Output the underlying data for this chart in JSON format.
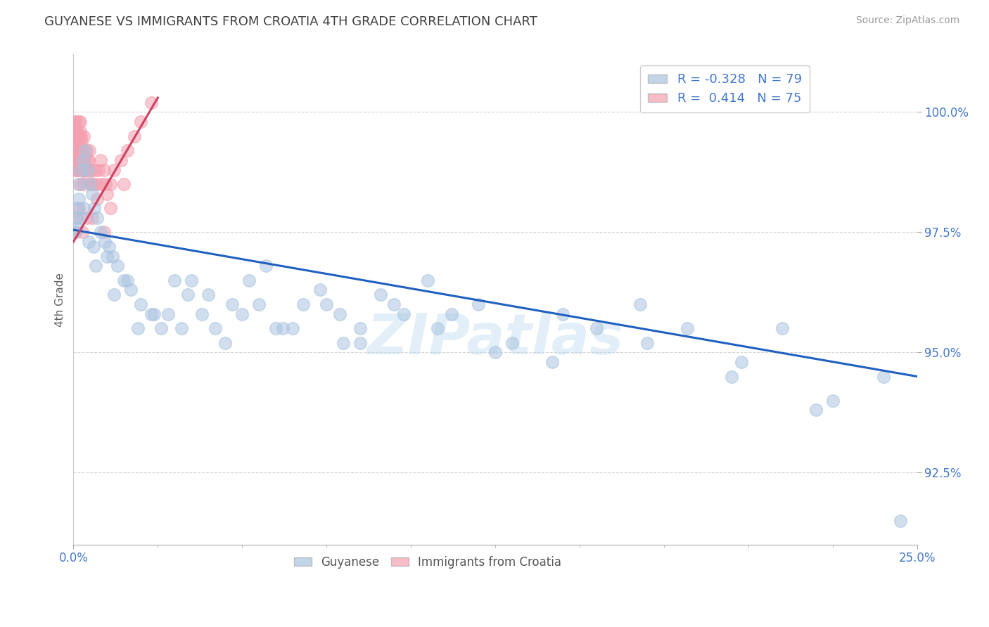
{
  "title": "GUYANESE VS IMMIGRANTS FROM CROATIA 4TH GRADE CORRELATION CHART",
  "source_text": "Source: ZipAtlas.com",
  "ylabel": "4th Grade",
  "watermark": "ZIPatlas",
  "x_min": 0.0,
  "x_max": 25.0,
  "y_min": 91.0,
  "y_max": 101.2,
  "x_ticks": [
    0.0,
    25.0
  ],
  "x_tick_labels": [
    "0.0%",
    "25.0%"
  ],
  "y_ticks": [
    92.5,
    95.0,
    97.5,
    100.0
  ],
  "y_tick_labels": [
    "92.5%",
    "95.0%",
    "97.5%",
    "100.0%"
  ],
  "guyanese_color": "#aac4e0",
  "croatia_color": "#f4a0b0",
  "blue_line_color": "#2060c0",
  "pink_line_color": "#d04060",
  "blue_line_x0": 0.0,
  "blue_line_y0": 97.55,
  "blue_line_x1": 25.0,
  "blue_line_y1": 94.5,
  "pink_line_x0": 0.0,
  "pink_line_y0": 97.3,
  "pink_line_x1": 2.5,
  "pink_line_y1": 100.3,
  "blue_scatter_x": [
    0.05,
    0.07,
    0.1,
    0.12,
    0.15,
    0.18,
    0.22,
    0.28,
    0.35,
    0.42,
    0.5,
    0.55,
    0.62,
    0.7,
    0.8,
    0.92,
    1.05,
    1.15,
    1.3,
    1.5,
    1.7,
    2.0,
    2.3,
    2.6,
    3.0,
    3.4,
    3.8,
    4.2,
    4.7,
    5.2,
    5.7,
    6.2,
    6.8,
    7.3,
    7.9,
    8.5,
    9.1,
    9.8,
    10.5,
    11.2,
    12.0,
    13.0,
    14.2,
    15.5,
    16.8,
    18.2,
    19.5,
    21.0,
    22.5,
    24.0,
    0.25,
    0.45,
    0.65,
    1.2,
    1.9,
    2.8,
    3.5,
    4.5,
    5.5,
    6.5,
    7.5,
    8.5,
    9.5,
    10.8,
    12.5,
    14.5,
    17.0,
    19.8,
    22.0,
    24.5,
    0.3,
    0.6,
    1.0,
    1.6,
    2.4,
    3.2,
    4.0,
    5.0,
    6.0,
    8.0
  ],
  "blue_scatter_y": [
    97.5,
    97.8,
    97.6,
    98.0,
    98.2,
    98.5,
    98.8,
    99.0,
    99.2,
    98.8,
    98.5,
    98.3,
    98.0,
    97.8,
    97.5,
    97.3,
    97.2,
    97.0,
    96.8,
    96.5,
    96.3,
    96.0,
    95.8,
    95.5,
    96.5,
    96.2,
    95.8,
    95.5,
    96.0,
    96.5,
    96.8,
    95.5,
    96.0,
    96.3,
    95.8,
    95.5,
    96.2,
    95.8,
    96.5,
    95.8,
    96.0,
    95.2,
    94.8,
    95.5,
    96.0,
    95.5,
    94.5,
    95.5,
    94.0,
    94.5,
    97.8,
    97.3,
    96.8,
    96.2,
    95.5,
    95.8,
    96.5,
    95.2,
    96.0,
    95.5,
    96.0,
    95.2,
    96.0,
    95.5,
    95.0,
    95.8,
    95.2,
    94.8,
    93.8,
    91.5,
    98.0,
    97.2,
    97.0,
    96.5,
    95.8,
    95.5,
    96.2,
    95.8,
    95.5,
    95.2
  ],
  "pink_scatter_x": [
    0.02,
    0.03,
    0.04,
    0.05,
    0.06,
    0.06,
    0.07,
    0.08,
    0.08,
    0.09,
    0.1,
    0.1,
    0.11,
    0.12,
    0.13,
    0.14,
    0.15,
    0.16,
    0.17,
    0.18,
    0.19,
    0.2,
    0.21,
    0.22,
    0.23,
    0.24,
    0.25,
    0.27,
    0.28,
    0.3,
    0.32,
    0.35,
    0.38,
    0.4,
    0.43,
    0.45,
    0.48,
    0.52,
    0.55,
    0.6,
    0.65,
    0.7,
    0.75,
    0.8,
    0.85,
    0.9,
    0.95,
    1.0,
    1.1,
    1.2,
    1.4,
    1.6,
    1.8,
    2.0,
    2.3,
    0.05,
    0.07,
    0.09,
    0.12,
    0.15,
    0.18,
    0.22,
    0.28,
    0.35,
    0.45,
    0.55,
    0.7,
    0.9,
    1.1,
    1.5,
    0.06,
    0.1,
    0.16,
    0.26,
    0.4
  ],
  "pink_scatter_y": [
    99.5,
    99.8,
    99.3,
    99.6,
    99.2,
    99.7,
    99.0,
    99.4,
    98.8,
    99.2,
    99.5,
    98.8,
    99.3,
    99.6,
    99.0,
    99.4,
    99.8,
    99.2,
    99.5,
    99.0,
    99.3,
    99.6,
    99.8,
    99.2,
    99.5,
    99.0,
    99.4,
    98.8,
    99.2,
    99.5,
    99.0,
    98.8,
    99.2,
    98.6,
    99.0,
    98.8,
    99.2,
    98.5,
    98.8,
    98.5,
    98.8,
    98.5,
    98.8,
    99.0,
    98.5,
    98.8,
    98.5,
    98.3,
    98.5,
    98.8,
    99.0,
    99.2,
    99.5,
    99.8,
    100.2,
    99.8,
    99.5,
    99.2,
    98.8,
    98.5,
    98.8,
    99.0,
    98.5,
    98.8,
    99.0,
    97.8,
    98.2,
    97.5,
    98.0,
    98.5,
    97.5,
    97.8,
    98.0,
    97.5,
    97.8
  ],
  "grid_color": "#cccccc",
  "bg_color": "#ffffff",
  "title_color": "#404040",
  "axis_label_color": "#606060",
  "tick_color": "#4477cc",
  "legend_r_color": "#4477cc",
  "legend_n_color": "#333333"
}
